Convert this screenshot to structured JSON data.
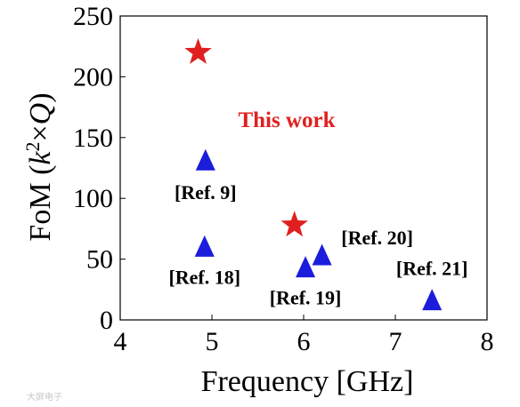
{
  "chart_data": {
    "type": "scatter",
    "title": "",
    "xlabel": "Frequency [GHz]",
    "ylabel": {
      "prefix": "FoM (",
      "k": "k",
      "sup": "2",
      "times": "×",
      "q": "Q",
      "suffix": ")"
    },
    "xlim": [
      4,
      8
    ],
    "ylim": [
      0,
      250
    ],
    "xticks": [
      "4",
      "5",
      "6",
      "7",
      "8"
    ],
    "yticks": [
      "0",
      "50",
      "100",
      "150",
      "200",
      "250"
    ],
    "grid": false,
    "colors": {
      "this_work": "#e02020",
      "refs": "#1c1cdc"
    },
    "series": [
      {
        "name": "This work",
        "marker": "star",
        "color": "#e02020",
        "points": [
          {
            "x": 4.85,
            "y": 220
          },
          {
            "x": 5.9,
            "y": 78
          }
        ]
      },
      {
        "marker": "triangle",
        "color": "#1c1cdc",
        "points": [
          {
            "x": 4.93,
            "y": 130,
            "label": "[Ref. 9]"
          },
          {
            "x": 4.92,
            "y": 59,
            "label": "[Ref. 18]"
          },
          {
            "x": 6.02,
            "y": 42,
            "label": "[Ref. 19]"
          },
          {
            "x": 6.2,
            "y": 52,
            "label": "[Ref. 20]"
          },
          {
            "x": 7.4,
            "y": 15,
            "label": "[Ref. 21]"
          }
        ]
      }
    ]
  },
  "watermark": "大屏电子"
}
